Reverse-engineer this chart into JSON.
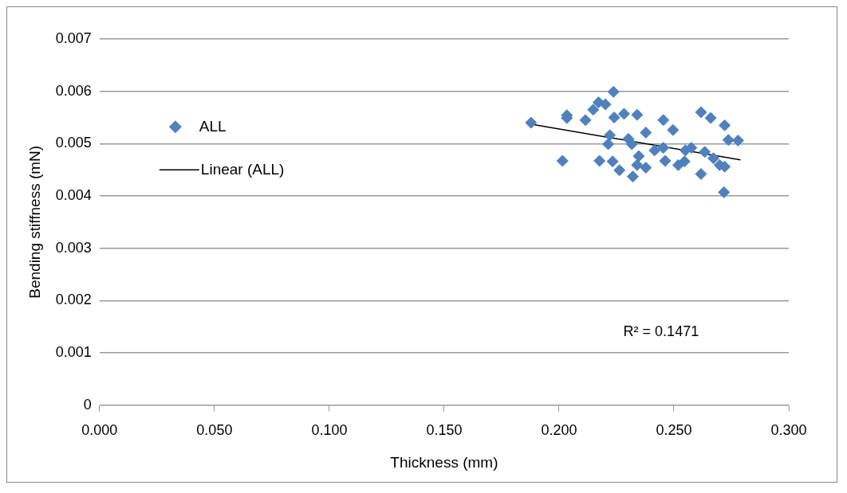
{
  "chart_data": {
    "type": "scatter",
    "xlabel": "Thickness (mm)",
    "ylabel": "Bending stiffness (mN)",
    "xlim": [
      0,
      0.3
    ],
    "ylim": [
      0,
      0.007
    ],
    "xticks": [
      {
        "value": 0,
        "label": "0.000"
      },
      {
        "value": 0.05,
        "label": "0.050"
      },
      {
        "value": 0.1,
        "label": "0.100"
      },
      {
        "value": 0.15,
        "label": "0.150"
      },
      {
        "value": 0.2,
        "label": "0.200"
      },
      {
        "value": 0.25,
        "label": "0.250"
      },
      {
        "value": 0.3,
        "label": "0.300"
      }
    ],
    "yticks": [
      0,
      0.001,
      0.002,
      0.003,
      0.004,
      0.005,
      0.006,
      0.007
    ],
    "grid": "y",
    "legend": "left",
    "marker": "diamond",
    "annotations": [
      "R² = 0.1471"
    ],
    "series": [
      {
        "name": "ALL",
        "color": "#4f81bd",
        "x": [
          0.1878,
          0.2034,
          0.2034,
          0.2115,
          0.2172,
          0.2149,
          0.2237,
          0.2202,
          0.224,
          0.2283,
          0.2015,
          0.2176,
          0.2221,
          0.2214,
          0.2233,
          0.2263,
          0.2302,
          0.234,
          0.2454,
          0.2496,
          0.2618,
          0.266,
          0.2721,
          0.2737,
          0.2779,
          0.2718,
          0.2618,
          0.2699,
          0.2721,
          0.2672,
          0.2634,
          0.2576,
          0.255,
          0.2519,
          0.2454,
          0.2462,
          0.2378,
          0.2378,
          0.2321,
          0.2347,
          0.2416,
          0.2546,
          0.2317,
          0.234
        ],
        "values": [
          0.0054,
          0.00554,
          0.00549,
          0.00545,
          0.00579,
          0.00565,
          0.00599,
          0.00575,
          0.0055,
          0.00557,
          0.00467,
          0.00467,
          0.00516,
          0.00499,
          0.00466,
          0.00449,
          0.00509,
          0.00555,
          0.00545,
          0.00526,
          0.0056,
          0.00549,
          0.00535,
          0.00507,
          0.00506,
          0.00407,
          0.00442,
          0.00459,
          0.00456,
          0.00472,
          0.00484,
          0.00492,
          0.00487,
          0.00459,
          0.00492,
          0.00467,
          0.00521,
          0.00454,
          0.00437,
          0.00476,
          0.00487,
          0.00466,
          0.00499,
          0.00459
        ]
      },
      {
        "name": "Linear (ALL)",
        "type": "line",
        "color": "#000000",
        "marker": "none",
        "line_style": "solid",
        "x": [
          0.188,
          0.279
        ],
        "values": [
          0.00537,
          0.00469
        ]
      }
    ]
  }
}
